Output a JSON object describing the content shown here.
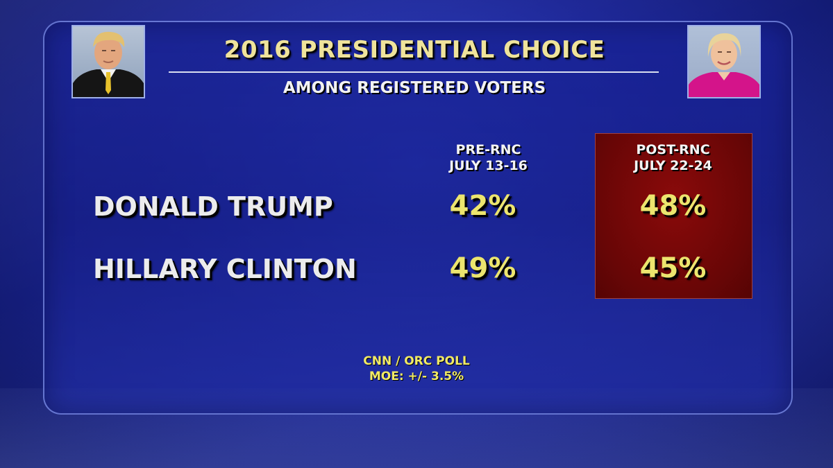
{
  "header": {
    "title": "2016 PRESIDENTIAL CHOICE",
    "subtitle": "AMONG REGISTERED VOTERS"
  },
  "colors": {
    "value_text": "#ece56e",
    "title_text": "#efe39b",
    "highlight_box": "#6e0707",
    "panel": "#1b2596"
  },
  "chart_data": {
    "type": "table",
    "title": "2016 PRESIDENTIAL CHOICE",
    "subtitle": "AMONG REGISTERED VOTERS",
    "columns": [
      {
        "label_line1": "PRE-RNC",
        "label_line2": "JULY 13-16"
      },
      {
        "label_line1": "POST-RNC",
        "label_line2": "JULY 22-24",
        "highlighted": true
      }
    ],
    "rows": [
      {
        "name": "DONALD TRUMP",
        "values": [
          "42%",
          "48%"
        ],
        "numeric": [
          42,
          48
        ]
      },
      {
        "name": "HILLARY CLINTON",
        "values": [
          "49%",
          "45%"
        ],
        "numeric": [
          49,
          45
        ]
      }
    ],
    "source_line1": "CNN / ORC POLL",
    "source_line2": "MOE: +/- 3.5%"
  }
}
